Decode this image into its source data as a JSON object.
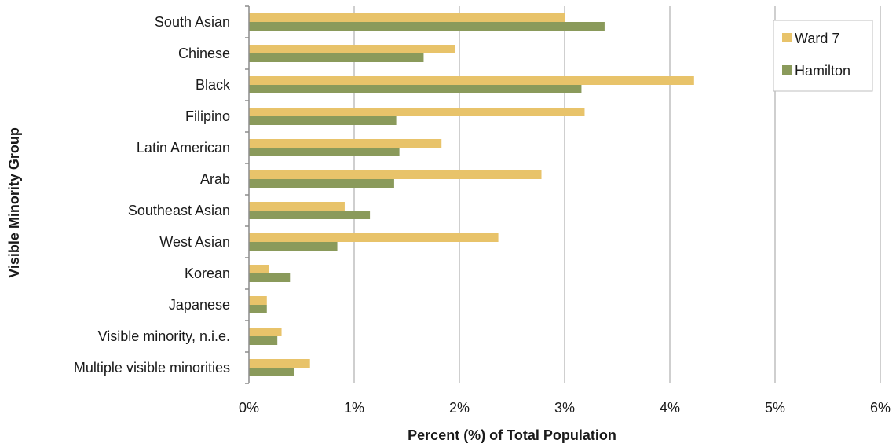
{
  "chart_data": {
    "type": "bar",
    "orientation": "horizontal",
    "categories": [
      "South Asian",
      "Chinese",
      "Black",
      "Filipino",
      "Latin American",
      "Arab",
      "Southeast Asian",
      "West Asian",
      "Korean",
      "Japanese",
      "Visible minority, n.i.e.",
      "Multiple visible minorities"
    ],
    "series": [
      {
        "name": "Ward 7",
        "color": "#E8C36A",
        "values": [
          3.0,
          1.96,
          4.23,
          3.19,
          1.83,
          2.78,
          0.91,
          2.37,
          0.19,
          0.17,
          0.31,
          0.58
        ]
      },
      {
        "name": "Hamilton",
        "color": "#8A9A5B",
        "values": [
          3.38,
          1.66,
          3.16,
          1.4,
          1.43,
          1.38,
          1.15,
          0.84,
          0.39,
          0.17,
          0.27,
          0.43
        ]
      }
    ],
    "xlabel": "Percent (%) of Total Population",
    "ylabel": "Visible Minority Group",
    "xlim": [
      0,
      6
    ],
    "xticks": [
      0,
      1,
      2,
      3,
      4,
      5,
      6
    ],
    "xtick_labels": [
      "0%",
      "1%",
      "2%",
      "3%",
      "4%",
      "5%",
      "6%"
    ],
    "grid": "vertical",
    "legend_position": "top-right"
  }
}
